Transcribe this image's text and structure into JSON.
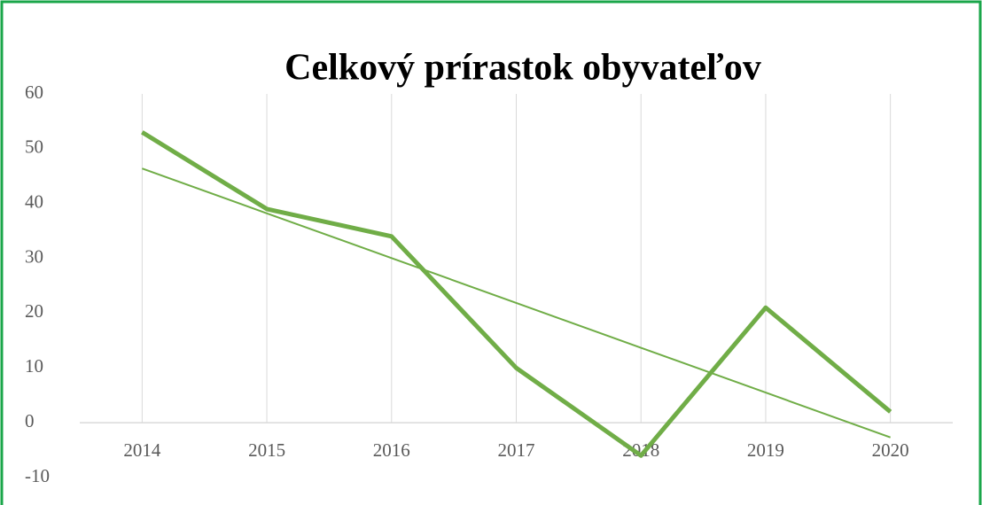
{
  "chart_data": {
    "type": "line",
    "title": "Celkový prírastok obyvateľov",
    "categories": [
      "2014",
      "2015",
      "2016",
      "2017",
      "2018",
      "2019",
      "2020"
    ],
    "values": [
      53,
      39,
      34,
      10,
      -6,
      21,
      2
    ],
    "trend_values": [
      46.39,
      38.21,
      30.04,
      21.86,
      13.68,
      5.5,
      -2.68
    ],
    "color": "#70ad47",
    "ylim": [
      -10,
      60
    ],
    "yticks": [
      -10,
      0,
      10,
      20,
      30,
      40,
      50,
      60
    ],
    "grid": true
  }
}
